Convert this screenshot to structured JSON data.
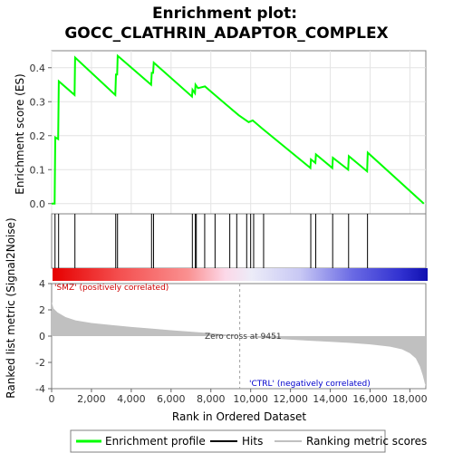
{
  "chart_data": [
    {
      "type": "line",
      "title_line1": "Enrichment plot:",
      "title_line2": "GOCC_CLATHRIN_ADAPTOR_COMPLEX",
      "ylabel": "Enrichment score (ES)",
      "xlim": [
        0,
        18800
      ],
      "ylim": [
        -0.03,
        0.45
      ],
      "yticks": [
        "0.0",
        "0.1",
        "0.2",
        "0.3",
        "0.4"
      ],
      "line_color": "#00ff00",
      "series": [
        {
          "name": "Enrichment profile",
          "points": [
            [
              0,
              0
            ],
            [
              150,
              0
            ],
            [
              180,
              0.195
            ],
            [
              330,
              0.19
            ],
            [
              360,
              0.36
            ],
            [
              1150,
              0.32
            ],
            [
              1180,
              0.43
            ],
            [
              3200,
              0.32
            ],
            [
              3230,
              0.38
            ],
            [
              3290,
              0.38
            ],
            [
              3320,
              0.435
            ],
            [
              5000,
              0.35
            ],
            [
              5030,
              0.385
            ],
            [
              5100,
              0.385
            ],
            [
              5130,
              0.415
            ],
            [
              7050,
              0.315
            ],
            [
              7080,
              0.335
            ],
            [
              7200,
              0.325
            ],
            [
              7230,
              0.35
            ],
            [
              7350,
              0.34
            ],
            [
              7700,
              0.345
            ],
            [
              8200,
              0.32
            ],
            [
              8800,
              0.29
            ],
            [
              9400,
              0.26
            ],
            [
              9900,
              0.24
            ],
            [
              10100,
              0.245
            ],
            [
              10600,
              0.22
            ],
            [
              13000,
              0.105
            ],
            [
              13030,
              0.13
            ],
            [
              13250,
              0.12
            ],
            [
              13280,
              0.145
            ],
            [
              14100,
              0.105
            ],
            [
              14130,
              0.135
            ],
            [
              14900,
              0.1
            ],
            [
              14930,
              0.14
            ],
            [
              15850,
              0.095
            ],
            [
              15880,
              0.15
            ],
            [
              18700,
              0
            ]
          ]
        }
      ],
      "hits": [
        170,
        350,
        1170,
        3220,
        3310,
        5020,
        5120,
        7070,
        7220,
        7270,
        7690,
        8210,
        8950,
        9300,
        9800,
        10000,
        10150,
        10650,
        13020,
        13270,
        14120,
        14920,
        15870
      ]
    },
    {
      "type": "area",
      "ylabel": "Ranked list metric (Signal2Noise)",
      "xlabel": "Rank in Ordered Dataset",
      "xlim": [
        0,
        18800
      ],
      "ylim": [
        -4,
        4
      ],
      "xticks": [
        "0",
        "2,000",
        "4,000",
        "6,000",
        "8,000",
        "10,000",
        "12,000",
        "14,000",
        "16,000",
        "18,000"
      ],
      "yticks": [
        "-4",
        "-2",
        "0",
        "2",
        "4"
      ],
      "zero_cross_label": "Zero cross at 9451",
      "zero_cross": 9451,
      "pos_label": "'SMZ' (positively correlated)",
      "neg_label": "'CTRL' (negatively correlated)",
      "pos_color": "#cc0000",
      "neg_color": "#0000cc",
      "fill_color": "#c0c0c0",
      "profile": [
        [
          0,
          2.6
        ],
        [
          100,
          2.1
        ],
        [
          300,
          1.8
        ],
        [
          700,
          1.45
        ],
        [
          1200,
          1.2
        ],
        [
          2000,
          1.0
        ],
        [
          3000,
          0.85
        ],
        [
          4000,
          0.7
        ],
        [
          5000,
          0.58
        ],
        [
          6000,
          0.45
        ],
        [
          7000,
          0.34
        ],
        [
          8000,
          0.22
        ],
        [
          9000,
          0.08
        ],
        [
          9451,
          0
        ],
        [
          10000,
          -0.08
        ],
        [
          11000,
          -0.18
        ],
        [
          12000,
          -0.27
        ],
        [
          13000,
          -0.35
        ],
        [
          14000,
          -0.43
        ],
        [
          15000,
          -0.52
        ],
        [
          16000,
          -0.63
        ],
        [
          17000,
          -0.8
        ],
        [
          17600,
          -1.0
        ],
        [
          18000,
          -1.3
        ],
        [
          18300,
          -1.7
        ],
        [
          18500,
          -2.3
        ],
        [
          18650,
          -3.0
        ],
        [
          18750,
          -3.6
        ],
        [
          18800,
          -3.8
        ]
      ]
    }
  ],
  "legend": {
    "enrichment": "Enrichment profile",
    "hits": "Hits",
    "ranking": "Ranking metric scores"
  }
}
